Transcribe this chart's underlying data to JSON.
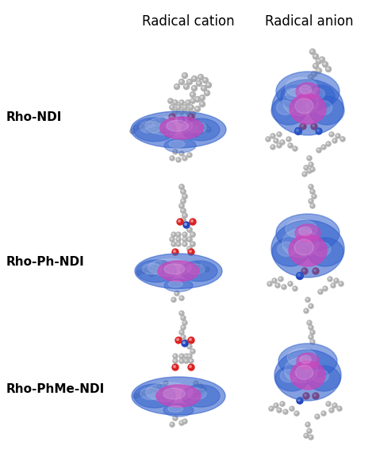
{
  "title_col1": "Radical cation",
  "title_col2": "Radical anion",
  "row_labels": [
    "Rho-NDI",
    "Rho-Ph-NDI",
    "Rho-PhMe-NDI"
  ],
  "background_color": "#ffffff",
  "label_fontsize": 11,
  "header_fontsize": 12,
  "fig_width": 4.74,
  "fig_height": 5.66,
  "blue_color": "#3060CC",
  "pink_color": "#CC44BB",
  "atom_gray": "#b0b0b0",
  "atom_red": "#dd2222",
  "atom_blue_dark": "#2244bb",
  "atom_white": "#e8e8e8"
}
